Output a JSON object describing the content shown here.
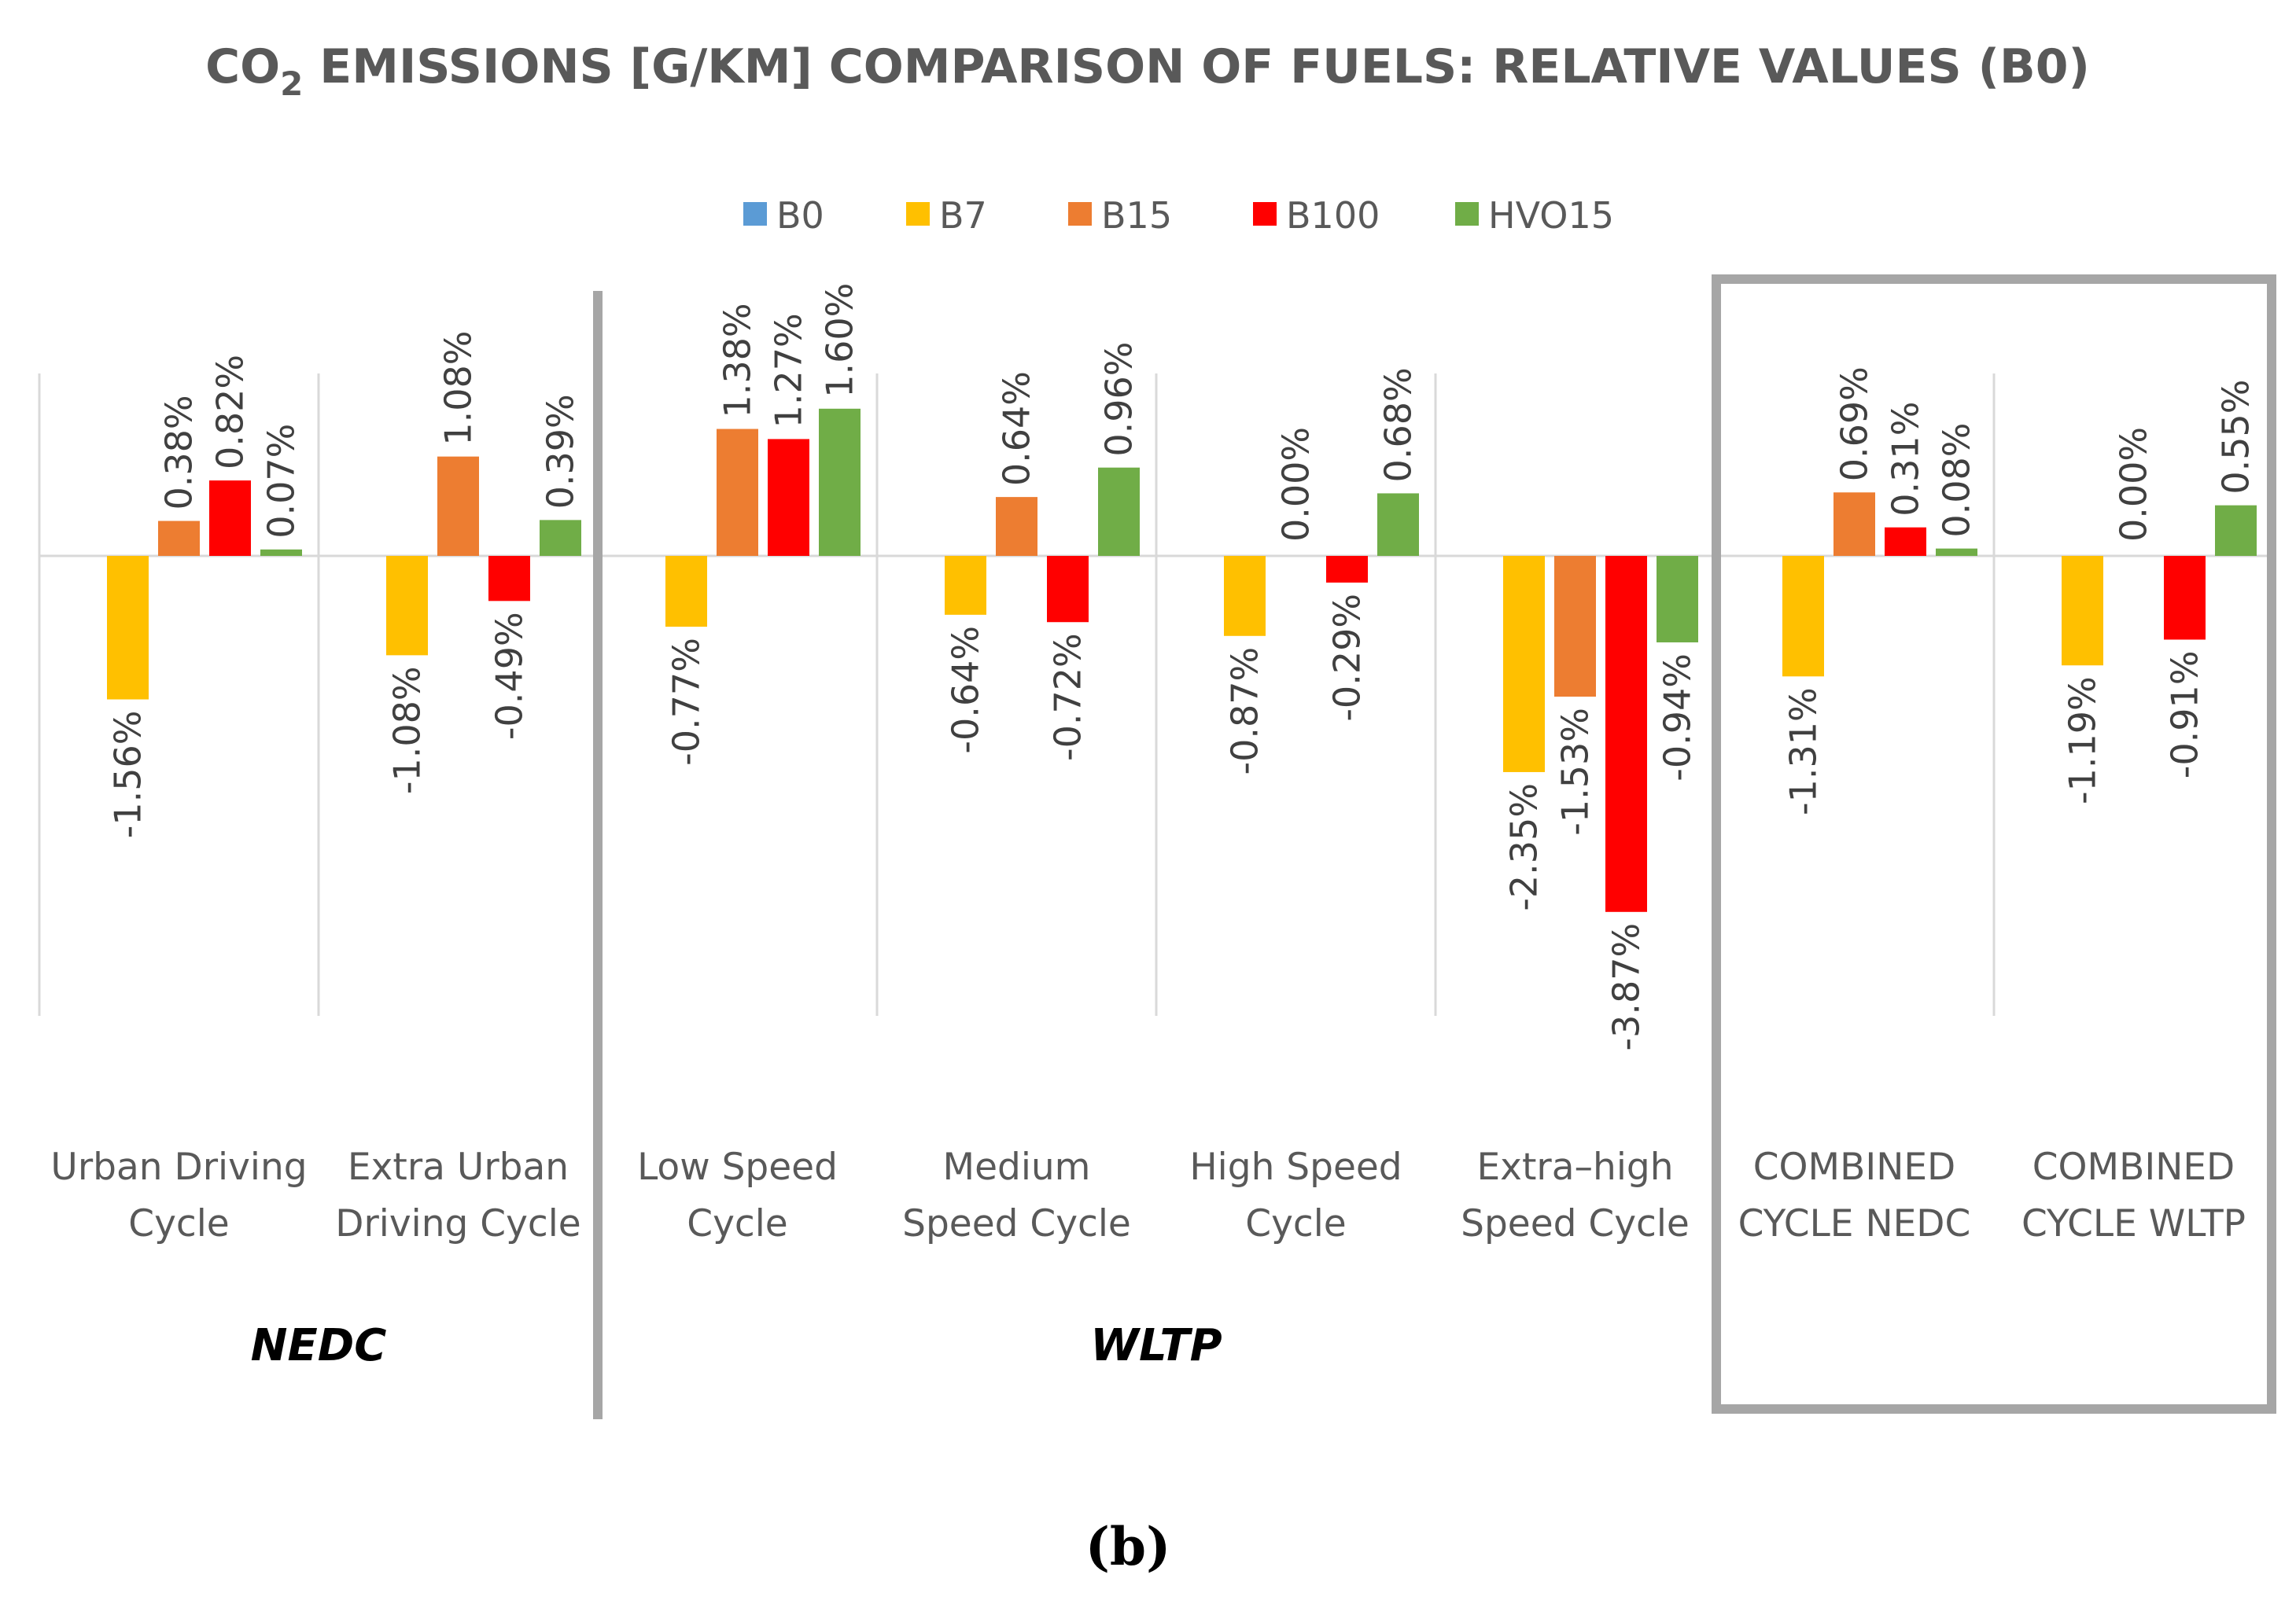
{
  "title": {
    "prefix": "CO",
    "subscript": "2",
    "rest": " EMISSIONS [G/KM] COMPARISON OF FUELS: RELATIVE VALUES (B0)"
  },
  "panel_label": "(b)",
  "groups": [
    {
      "label": "NEDC",
      "categories": [
        0,
        1
      ]
    },
    {
      "label": "WLTP",
      "categories": [
        2,
        3,
        4,
        5
      ]
    }
  ],
  "colors": {
    "B0": "#5b9bd5",
    "B7": "#ffc000",
    "B15": "#ed7d31",
    "B100": "#ff0000",
    "HVO15": "#70ad47",
    "gridline": "#d9d9d9",
    "separator": "#a6a6a6"
  },
  "chart_data": {
    "type": "bar",
    "title": "CO2 EMISSIONS [G/KM] COMPARISON OF FUELS: RELATIVE VALUES (B0)",
    "unit": "%",
    "categories": [
      [
        "Urban Driving",
        "Cycle"
      ],
      [
        "Extra Urban",
        "Driving Cycle"
      ],
      [
        "Low Speed",
        "Cycle"
      ],
      [
        "Medium",
        "Speed Cycle"
      ],
      [
        "High Speed",
        "Cycle"
      ],
      [
        "Extra–high",
        "Speed Cycle"
      ],
      [
        "COMBINED",
        "CYCLE NEDC"
      ],
      [
        "COMBINED",
        "CYCLE WLTP"
      ]
    ],
    "series": [
      {
        "name": "B0",
        "values": [
          0,
          0,
          0,
          0,
          0,
          0,
          0,
          0
        ],
        "labels": [
          null,
          null,
          null,
          null,
          null,
          null,
          null,
          null
        ]
      },
      {
        "name": "B7",
        "values": [
          -1.56,
          -1.08,
          -0.77,
          -0.64,
          -0.87,
          -2.35,
          -1.31,
          -1.19
        ],
        "labels": [
          "-1.56%",
          "-1.08%",
          "-0.77%",
          "-0.64%",
          "-0.87%",
          "-2.35%",
          "-1.31%",
          "-1.19%"
        ]
      },
      {
        "name": "B15",
        "values": [
          0.38,
          1.08,
          1.38,
          0.64,
          0.0,
          -1.53,
          0.69,
          0.0
        ],
        "labels": [
          "0.38%",
          "1.08%",
          "1.38%",
          "0.64%",
          "0.00%",
          "-1.53%",
          "0.69%",
          "0.00%"
        ]
      },
      {
        "name": "B100",
        "values": [
          0.82,
          -0.49,
          1.27,
          -0.72,
          -0.29,
          -3.87,
          0.31,
          -0.91
        ],
        "labels": [
          "0.82%",
          "-0.49%",
          "1.27%",
          "-0.72%",
          "-0.29%",
          "-3.87%",
          "0.31%",
          "-0.91%"
        ]
      },
      {
        "name": "HVO15",
        "values": [
          0.07,
          0.39,
          1.6,
          0.96,
          0.68,
          -0.94,
          0.08,
          0.55
        ],
        "labels": [
          "0.07%",
          "0.39%",
          "1.60%",
          "0.96%",
          "0.68%",
          "-0.94%",
          "0.08%",
          "0.55%"
        ]
      }
    ],
    "legend_position": "top-center",
    "grid": false
  }
}
